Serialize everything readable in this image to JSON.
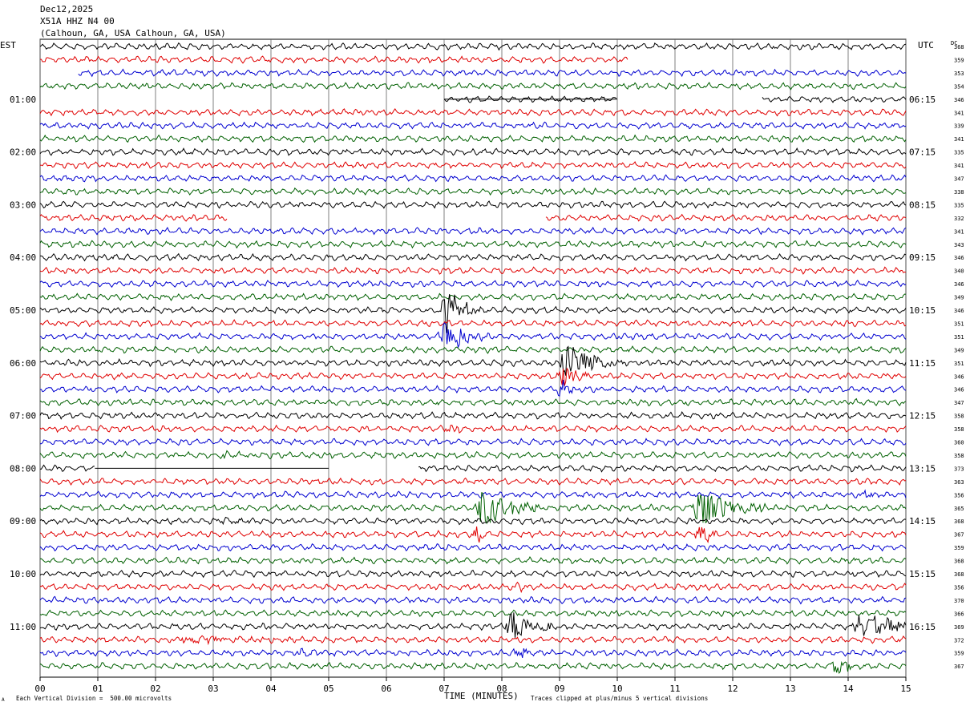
{
  "header": {
    "date": "Dec12,2025",
    "station": "X51A HHZ N4 00",
    "location": "(Calhoun, GA, USA Calhoun, GA, USA)"
  },
  "left_timezone": "EST",
  "right_timezone": "UTC",
  "dc_label": "DC",
  "footer": {
    "left": "Each Vertical Division =  500.00 microvolts",
    "right": "Traces clipped at plus/minus 5 vertical divisions",
    "mark": "A"
  },
  "colors": {
    "trace": [
      "#000000",
      "#e00000",
      "#0000d0",
      "#006000"
    ],
    "grid": "#606060"
  },
  "chart_data": {
    "type": "line",
    "xlabel": "TIME (MINUTES)",
    "xlim": [
      0,
      15
    ],
    "x_ticks": [
      "00",
      "01",
      "02",
      "03",
      "04",
      "05",
      "06",
      "07",
      "08",
      "09",
      "10",
      "11",
      "12",
      "13",
      "14",
      "15"
    ],
    "left_time_labels": [
      "01:00",
      "02:00",
      "03:00",
      "04:00",
      "05:00",
      "06:00",
      "07:00",
      "08:00",
      "09:00",
      "10:00",
      "11:00"
    ],
    "right_time_labels": [
      "06:15",
      "07:15",
      "08:15",
      "09:15",
      "10:15",
      "11:15",
      "12:15",
      "13:15",
      "14:15",
      "15:15",
      "16:15"
    ],
    "dc_values": [
      "368",
      "359",
      "353",
      "354",
      "346",
      "341",
      "339",
      "341",
      "335",
      "341",
      "347",
      "338",
      "335",
      "332",
      "341",
      "343",
      "346",
      "340",
      "346",
      "349",
      "346",
      "351",
      "351",
      "349",
      "351",
      "346",
      "346",
      "347",
      "358",
      "358",
      "360",
      "358",
      "373",
      "363",
      "356",
      "365",
      "368",
      "367",
      "359",
      "368",
      "368",
      "356",
      "370",
      "366",
      "369",
      "372",
      "359",
      "367"
    ],
    "trace_count": 48,
    "minutes_per_trace": 15,
    "units_per_division": "500.00 microvolts",
    "gaps": [
      {
        "row": 1,
        "from": 10.2,
        "to": 15
      },
      {
        "row": 2,
        "from": 0,
        "to": 0.65
      },
      {
        "row": 4,
        "from": 0,
        "to": 7.0,
        "flat_from": 7.0,
        "flat_to": 10.0
      },
      {
        "row": 4,
        "from": 10.0,
        "to": 12.5
      },
      {
        "row": 13,
        "from": 3.25,
        "to": 8.75
      },
      {
        "row": 32,
        "from": 0.95,
        "to": 6.55,
        "flat_from": 0.95,
        "flat_to": 5.0
      }
    ],
    "events": [
      {
        "row": 20,
        "minute": 7.05,
        "amp": 3.5,
        "dur": 0.6
      },
      {
        "row": 22,
        "minute": 7.0,
        "amp": 3.2,
        "dur": 0.8
      },
      {
        "row": 24,
        "minute": 9.1,
        "amp": 3.0,
        "dur": 1.0
      },
      {
        "row": 25,
        "minute": 9.05,
        "amp": 2.2,
        "dur": 0.5
      },
      {
        "row": 26,
        "minute": 9.05,
        "amp": 1.5,
        "dur": 0.3
      },
      {
        "row": 29,
        "minute": 7.15,
        "amp": 1.0,
        "dur": 0.25
      },
      {
        "row": 31,
        "minute": 3.2,
        "amp": 0.6,
        "dur": 0.4
      },
      {
        "row": 34,
        "minute": 14.3,
        "amp": 0.7,
        "dur": 0.3
      },
      {
        "row": 35,
        "minute": 7.65,
        "amp": 3.5,
        "dur": 1.0
      },
      {
        "row": 35,
        "minute": 11.4,
        "amp": 3.5,
        "dur": 1.2
      },
      {
        "row": 36,
        "minute": 3.2,
        "amp": 0.5,
        "dur": 0.6
      },
      {
        "row": 37,
        "minute": 11.45,
        "amp": 2.0,
        "dur": 0.3
      },
      {
        "row": 37,
        "minute": 7.6,
        "amp": 1.5,
        "dur": 0.3
      },
      {
        "row": 41,
        "minute": 8.3,
        "amp": 0.6,
        "dur": 0.15
      },
      {
        "row": 44,
        "minute": 8.15,
        "amp": 2.5,
        "dur": 1.0
      },
      {
        "row": 44,
        "minute": 14.2,
        "amp": 2.3,
        "dur": 1.5
      },
      {
        "row": 45,
        "minute": 2.5,
        "amp": 0.6,
        "dur": 3.0
      },
      {
        "row": 46,
        "minute": 8.3,
        "amp": 0.8,
        "dur": 0.4
      },
      {
        "row": 46,
        "minute": 4.5,
        "amp": 0.5,
        "dur": 1.0
      },
      {
        "row": 47,
        "minute": 13.8,
        "amp": 1.5,
        "dur": 0.5
      }
    ]
  }
}
